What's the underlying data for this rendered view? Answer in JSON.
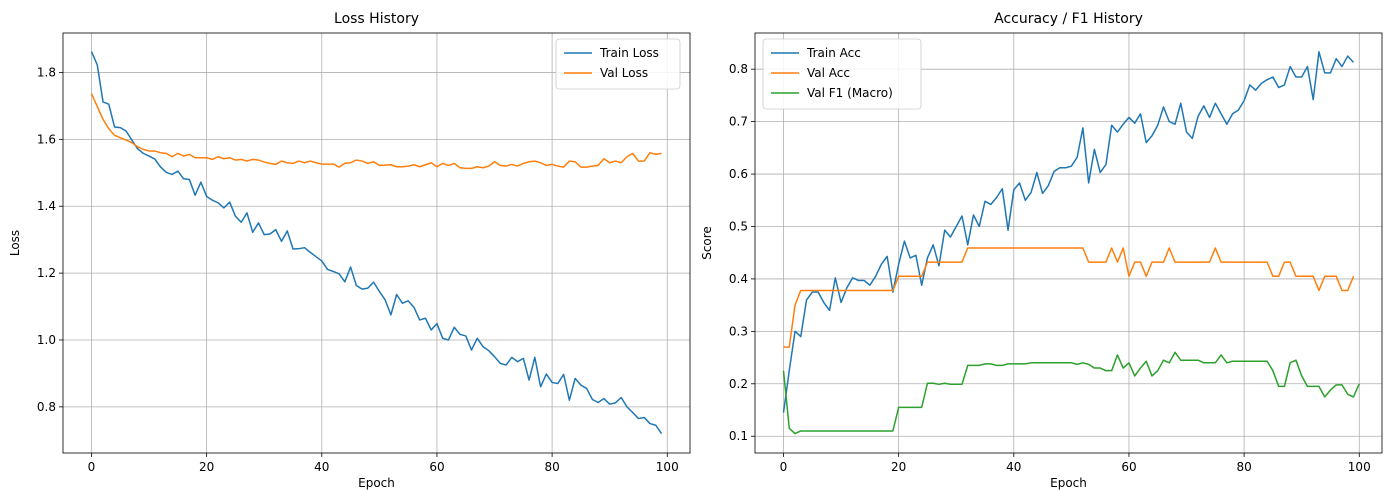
{
  "chart_data": [
    {
      "type": "line",
      "title": "Loss History",
      "xlabel": "Epoch",
      "ylabel": "Loss",
      "xlim": [
        -4.95,
        103.95
      ],
      "ylim": [
        0.662,
        1.918
      ],
      "xticks": [
        0,
        20,
        40,
        60,
        80,
        100
      ],
      "yticks": [
        0.8,
        1.0,
        1.2,
        1.4,
        1.6,
        1.8
      ],
      "xtick_labels": [
        "0",
        "20",
        "40",
        "60",
        "80",
        "100"
      ],
      "ytick_labels": [
        "0.8",
        "1.0",
        "1.2",
        "1.4",
        "1.6",
        "1.8"
      ],
      "grid": true,
      "legend_position": "top-right",
      "series": [
        {
          "name": "Train Loss",
          "color": "#1f77b4",
          "values": [
            1.862,
            1.823,
            1.712,
            1.705,
            1.637,
            1.635,
            1.625,
            1.598,
            1.572,
            1.558,
            1.55,
            1.541,
            1.517,
            1.501,
            1.495,
            1.505,
            1.482,
            1.48,
            1.433,
            1.472,
            1.429,
            1.418,
            1.41,
            1.395,
            1.412,
            1.37,
            1.352,
            1.38,
            1.322,
            1.35,
            1.315,
            1.317,
            1.33,
            1.295,
            1.326,
            1.272,
            1.273,
            1.276,
            1.262,
            1.249,
            1.236,
            1.211,
            1.205,
            1.198,
            1.174,
            1.218,
            1.163,
            1.152,
            1.155,
            1.173,
            1.145,
            1.12,
            1.075,
            1.136,
            1.11,
            1.117,
            1.098,
            1.06,
            1.065,
            1.03,
            1.049,
            1.005,
            1.0,
            1.038,
            1.017,
            1.012,
            0.97,
            1.005,
            0.98,
            0.968,
            0.95,
            0.93,
            0.925,
            0.948,
            0.935,
            0.945,
            0.88,
            0.948,
            0.86,
            0.898,
            0.873,
            0.87,
            0.897,
            0.82,
            0.885,
            0.865,
            0.855,
            0.822,
            0.813,
            0.825,
            0.808,
            0.812,
            0.828,
            0.8,
            0.783,
            0.765,
            0.768,
            0.75,
            0.745,
            0.72
          ]
        },
        {
          "name": "Val Loss",
          "color": "#ff7f0e",
          "values": [
            1.737,
            1.698,
            1.66,
            1.632,
            1.612,
            1.605,
            1.598,
            1.59,
            1.578,
            1.57,
            1.565,
            1.565,
            1.56,
            1.558,
            1.548,
            1.558,
            1.55,
            1.555,
            1.545,
            1.545,
            1.545,
            1.54,
            1.548,
            1.542,
            1.545,
            1.538,
            1.54,
            1.535,
            1.54,
            1.538,
            1.532,
            1.528,
            1.525,
            1.535,
            1.53,
            1.528,
            1.535,
            1.53,
            1.535,
            1.53,
            1.526,
            1.526,
            1.526,
            1.517,
            1.528,
            1.53,
            1.538,
            1.535,
            1.528,
            1.533,
            1.522,
            1.523,
            1.524,
            1.518,
            1.518,
            1.52,
            1.524,
            1.518,
            1.524,
            1.53,
            1.518,
            1.528,
            1.522,
            1.528,
            1.515,
            1.513,
            1.513,
            1.518,
            1.515,
            1.52,
            1.533,
            1.522,
            1.52,
            1.525,
            1.52,
            1.528,
            1.533,
            1.535,
            1.53,
            1.522,
            1.525,
            1.52,
            1.517,
            1.535,
            1.533,
            1.517,
            1.517,
            1.52,
            1.522,
            1.542,
            1.53,
            1.535,
            1.53,
            1.548,
            1.558,
            1.535,
            1.535,
            1.56,
            1.555,
            1.558
          ]
        }
      ]
    },
    {
      "type": "line",
      "title": "Accuracy / F1 History",
      "xlabel": "Epoch",
      "ylabel": "Score",
      "xlim": [
        -4.95,
        103.95
      ],
      "ylim": [
        0.068,
        0.869
      ],
      "xticks": [
        0,
        20,
        40,
        60,
        80,
        100
      ],
      "yticks": [
        0.1,
        0.2,
        0.3,
        0.4,
        0.5,
        0.6,
        0.7,
        0.8
      ],
      "xtick_labels": [
        "0",
        "20",
        "40",
        "60",
        "80",
        "100"
      ],
      "ytick_labels": [
        "0.1",
        "0.2",
        "0.3",
        "0.4",
        "0.5",
        "0.6",
        "0.7",
        "0.8"
      ],
      "grid": true,
      "legend_position": "top-left",
      "series": [
        {
          "name": "Train Acc",
          "color": "#1f77b4",
          "values": [
            0.145,
            0.225,
            0.3,
            0.29,
            0.36,
            0.375,
            0.375,
            0.355,
            0.34,
            0.402,
            0.355,
            0.383,
            0.402,
            0.397,
            0.397,
            0.388,
            0.405,
            0.428,
            0.443,
            0.375,
            0.428,
            0.472,
            0.44,
            0.445,
            0.388,
            0.44,
            0.465,
            0.425,
            0.493,
            0.48,
            0.5,
            0.52,
            0.465,
            0.522,
            0.5,
            0.548,
            0.542,
            0.555,
            0.572,
            0.493,
            0.57,
            0.583,
            0.55,
            0.565,
            0.603,
            0.563,
            0.578,
            0.605,
            0.612,
            0.612,
            0.615,
            0.632,
            0.688,
            0.583,
            0.647,
            0.603,
            0.618,
            0.693,
            0.68,
            0.695,
            0.708,
            0.697,
            0.715,
            0.66,
            0.673,
            0.693,
            0.728,
            0.7,
            0.695,
            0.735,
            0.68,
            0.668,
            0.71,
            0.73,
            0.708,
            0.735,
            0.715,
            0.695,
            0.715,
            0.722,
            0.74,
            0.77,
            0.76,
            0.773,
            0.78,
            0.785,
            0.765,
            0.77,
            0.805,
            0.785,
            0.785,
            0.805,
            0.742,
            0.833,
            0.793,
            0.793,
            0.82,
            0.805,
            0.825,
            0.813
          ]
        },
        {
          "name": "Val Acc",
          "color": "#ff7f0e",
          "values": [
            0.27,
            0.27,
            0.35,
            0.378,
            0.378,
            0.378,
            0.378,
            0.378,
            0.378,
            0.378,
            0.378,
            0.378,
            0.378,
            0.378,
            0.378,
            0.378,
            0.378,
            0.378,
            0.378,
            0.378,
            0.405,
            0.405,
            0.405,
            0.405,
            0.405,
            0.432,
            0.432,
            0.432,
            0.432,
            0.432,
            0.432,
            0.432,
            0.459,
            0.459,
            0.459,
            0.459,
            0.459,
            0.459,
            0.459,
            0.459,
            0.459,
            0.459,
            0.459,
            0.459,
            0.459,
            0.459,
            0.459,
            0.459,
            0.459,
            0.459,
            0.459,
            0.459,
            0.459,
            0.432,
            0.432,
            0.432,
            0.432,
            0.459,
            0.432,
            0.459,
            0.405,
            0.432,
            0.432,
            0.405,
            0.432,
            0.432,
            0.432,
            0.459,
            0.432,
            0.432,
            0.432,
            0.432,
            0.432,
            0.432,
            0.432,
            0.459,
            0.432,
            0.432,
            0.432,
            0.432,
            0.432,
            0.432,
            0.432,
            0.432,
            0.432,
            0.405,
            0.405,
            0.432,
            0.432,
            0.405,
            0.405,
            0.405,
            0.405,
            0.378,
            0.405,
            0.405,
            0.405,
            0.378,
            0.378,
            0.405
          ]
        },
        {
          "name": "Val F1 (Macro)",
          "color": "#2ca02c",
          "values": [
            0.225,
            0.115,
            0.105,
            0.11,
            0.11,
            0.11,
            0.11,
            0.11,
            0.11,
            0.11,
            0.11,
            0.11,
            0.11,
            0.11,
            0.11,
            0.11,
            0.11,
            0.11,
            0.11,
            0.11,
            0.155,
            0.155,
            0.155,
            0.155,
            0.155,
            0.201,
            0.201,
            0.199,
            0.201,
            0.199,
            0.199,
            0.199,
            0.235,
            0.235,
            0.235,
            0.238,
            0.238,
            0.235,
            0.235,
            0.238,
            0.238,
            0.238,
            0.238,
            0.24,
            0.24,
            0.24,
            0.24,
            0.24,
            0.24,
            0.24,
            0.24,
            0.237,
            0.24,
            0.237,
            0.23,
            0.23,
            0.225,
            0.225,
            0.255,
            0.23,
            0.24,
            0.215,
            0.23,
            0.243,
            0.215,
            0.225,
            0.245,
            0.24,
            0.26,
            0.245,
            0.245,
            0.245,
            0.245,
            0.24,
            0.24,
            0.24,
            0.255,
            0.24,
            0.243,
            0.243,
            0.243,
            0.243,
            0.243,
            0.243,
            0.243,
            0.225,
            0.195,
            0.195,
            0.24,
            0.245,
            0.215,
            0.195,
            0.195,
            0.195,
            0.175,
            0.188,
            0.198,
            0.198,
            0.18,
            0.175,
            0.2
          ]
        }
      ]
    }
  ]
}
